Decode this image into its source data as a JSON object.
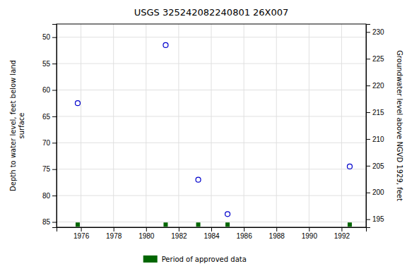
{
  "chart_data": {
    "type": "scatter",
    "title": "USGS 325242082240801 26X007",
    "ylabel": "Depth to water level, feet below land\nsurface",
    "y2label": "Groundwater level above NGVD 1929, feet",
    "xlim": [
      1974.5,
      1993.5
    ],
    "ylim": [
      86,
      47.5
    ],
    "y2lim": [
      193.5,
      231.5
    ],
    "xticks": [
      1976,
      1978,
      1980,
      1982,
      1984,
      1986,
      1988,
      1990,
      1992
    ],
    "yticks": [
      50,
      55,
      60,
      65,
      70,
      75,
      80,
      85
    ],
    "y2ticks": [
      195,
      200,
      205,
      210,
      215,
      220,
      225,
      230
    ],
    "grid": true,
    "legend": "bottom",
    "series": [
      {
        "x": [
          1975.8,
          1981.2,
          1983.2,
          1985.0,
          1992.5
        ],
        "values": [
          62.5,
          51.5,
          77.0,
          83.5,
          74.5
        ],
        "color": "#0000cc",
        "marker": "circle"
      },
      {
        "name": "Period of approved data",
        "x": [
          1975.8,
          1981.2,
          1983.2,
          1985.0,
          1992.5
        ],
        "values": [
          85.5,
          85.5,
          85.5,
          85.5,
          85.5
        ],
        "color": "#006600",
        "marker": "square"
      }
    ]
  }
}
